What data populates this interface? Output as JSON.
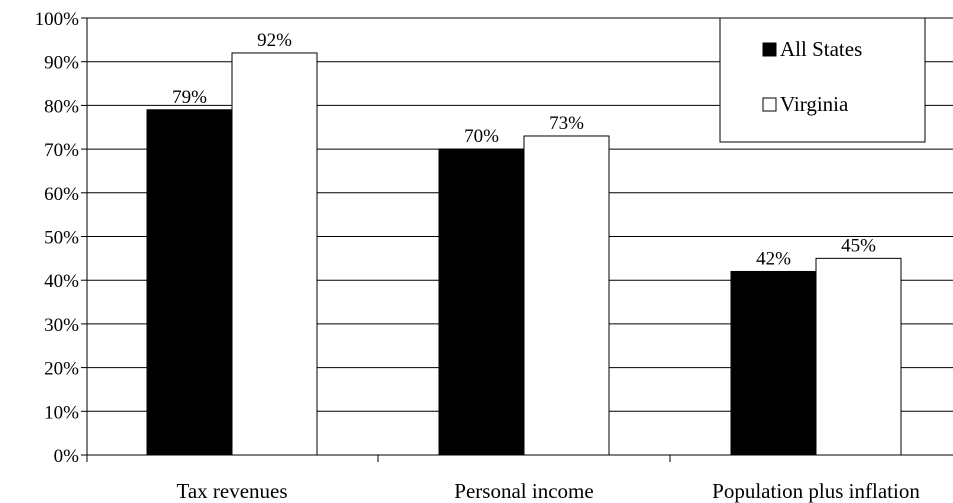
{
  "chart_data": {
    "type": "bar",
    "categories": [
      "Tax revenues",
      "Personal income",
      "Population plus inflation"
    ],
    "series": [
      {
        "name": "All States",
        "values": [
          79,
          70,
          42
        ],
        "color": "#000000"
      },
      {
        "name": "Virginia",
        "values": [
          92,
          73,
          45
        ],
        "color": "#ffffff"
      }
    ],
    "data_labels": [
      [
        "79%",
        "70%",
        "42%"
      ],
      [
        "92%",
        "73%",
        "45%"
      ]
    ],
    "y_ticks": [
      "0%",
      "10%",
      "20%",
      "30%",
      "40%",
      "50%",
      "60%",
      "70%",
      "80%",
      "90%",
      "100%"
    ],
    "ylim": [
      0,
      100
    ],
    "title": "",
    "xlabel": "",
    "ylabel": "",
    "grid": true,
    "legend_position": "top-right",
    "legend_symbols": [
      "■",
      "□"
    ]
  }
}
